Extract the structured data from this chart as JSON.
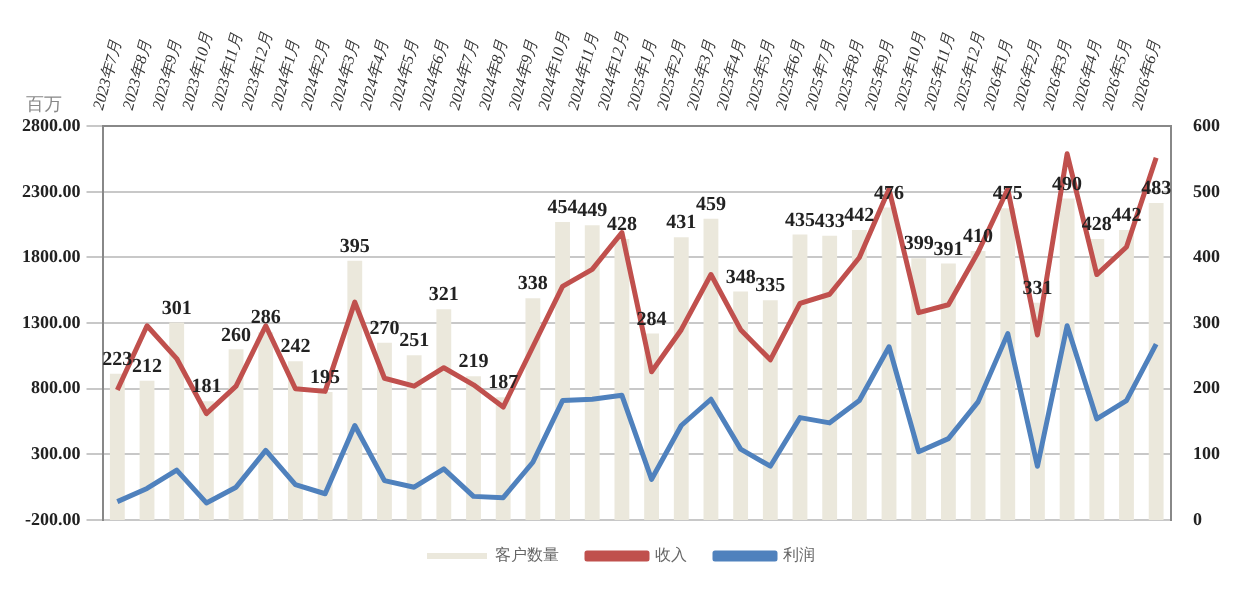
{
  "chart_data": {
    "type": "bar",
    "ylabel": "百万",
    "categories": [
      "2023年7月",
      "2023年8月",
      "2023年9月",
      "2023年10月",
      "2023年11月",
      "2023年12月",
      "2024年1月",
      "2024年2月",
      "2024年3月",
      "2024年4月",
      "2024年5月",
      "2024年6月",
      "2024年7月",
      "2024年8月",
      "2024年9月",
      "2024年10月",
      "2024年11月",
      "2024年12月",
      "2025年1月",
      "2025年2月",
      "2025年3月",
      "2025年4月",
      "2025年5月",
      "2025年6月",
      "2025年7月",
      "2025年8月",
      "2025年9月",
      "2025年10月",
      "2025年11月",
      "2025年12月",
      "2026年1月",
      "2026年2月",
      "2026年3月",
      "2026年4月",
      "2026年5月",
      "2026年6月"
    ],
    "series": [
      {
        "name": "客户数量",
        "axis": "y2",
        "color": "#ebe8dc",
        "values": [
          223,
          212,
          301,
          181,
          260,
          286,
          242,
          195,
          395,
          270,
          251,
          321,
          219,
          187,
          338,
          454,
          449,
          428,
          284,
          431,
          459,
          348,
          335,
          435,
          433,
          442,
          476,
          399,
          391,
          410,
          475,
          331,
          490,
          428,
          442,
          483
        ],
        "value_labels": [
          "223",
          "212",
          "301",
          "181",
          "260",
          "286",
          "242",
          "195",
          "395",
          "270",
          "251",
          "321",
          "219",
          "187",
          "338",
          "454",
          "449",
          "428",
          "284",
          "431",
          "459",
          "348",
          "335",
          "435",
          "433",
          "442",
          "476",
          "399",
          "391",
          "410",
          "475",
          "331",
          "490",
          "428",
          "442",
          "483"
        ]
      },
      {
        "name": "收入",
        "type": "line",
        "color": "#c0504d",
        "values": [
          790,
          1280,
          1030,
          610,
          820,
          1280,
          800,
          780,
          1460,
          880,
          820,
          960,
          830,
          660,
          1120,
          1580,
          1710,
          1990,
          930,
          1250,
          1670,
          1250,
          1020,
          1450,
          1520,
          1800,
          2320,
          1380,
          1440,
          1840,
          2320,
          1210,
          2590,
          1670,
          1880,
          2560
        ]
      },
      {
        "name": "利润",
        "type": "line",
        "color": "#4f81bd",
        "values": [
          -60,
          40,
          180,
          -70,
          50,
          330,
          70,
          0,
          520,
          100,
          50,
          190,
          -20,
          -30,
          240,
          710,
          720,
          750,
          110,
          520,
          720,
          340,
          210,
          580,
          540,
          710,
          1120,
          320,
          420,
          700,
          1220,
          210,
          1280,
          570,
          710,
          1140
        ]
      }
    ],
    "ylim": [
      -200,
      2800
    ],
    "yticks": [
      {
        "value": -200,
        "label": "-200.00"
      },
      {
        "value": 300,
        "label": "300.00"
      },
      {
        "value": 800,
        "label": "800.00"
      },
      {
        "value": 1300,
        "label": "1300.00"
      },
      {
        "value": 1800,
        "label": "1800.00"
      },
      {
        "value": 2300,
        "label": "2300.00"
      },
      {
        "value": 2800,
        "label": "2800.00"
      }
    ],
    "y2lim": [
      0,
      600
    ],
    "y2ticks": [
      0,
      100,
      200,
      300,
      400,
      500,
      600
    ],
    "grid": "y",
    "legend": "bottom",
    "line_style": "solid",
    "marker": "none"
  }
}
